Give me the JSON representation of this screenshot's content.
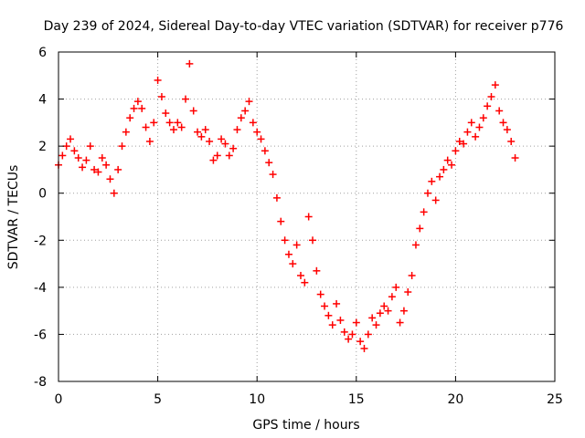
{
  "chart_data": {
    "type": "scatter",
    "title": "Day 239 of 2024, Sidereal Day-to-day VTEC variation (SDTVAR) for receiver p776",
    "xlabel": "GPS time / hours",
    "ylabel": "SDTVAR / TECUs",
    "xlim": [
      0,
      25
    ],
    "ylim": [
      -8,
      6
    ],
    "xticks": [
      0,
      5,
      10,
      15,
      20,
      25
    ],
    "yticks": [
      -8,
      -6,
      -4,
      -2,
      0,
      2,
      4,
      6
    ],
    "grid": true,
    "marker": "+",
    "color": "#ff0000",
    "series": [
      {
        "name": "SDTVAR",
        "x": [
          0.0,
          0.2,
          0.4,
          0.6,
          0.8,
          1.0,
          1.2,
          1.4,
          1.6,
          1.8,
          2.0,
          2.2,
          2.4,
          2.6,
          2.8,
          3.0,
          3.2,
          3.4,
          3.6,
          3.8,
          4.0,
          4.2,
          4.4,
          4.6,
          4.8,
          5.0,
          5.2,
          5.4,
          5.6,
          5.8,
          6.0,
          6.2,
          6.4,
          6.6,
          6.8,
          7.0,
          7.2,
          7.4,
          7.6,
          7.8,
          8.0,
          8.2,
          8.4,
          8.6,
          8.8,
          9.0,
          9.2,
          9.4,
          9.6,
          9.8,
          10.0,
          10.2,
          10.4,
          10.6,
          10.8,
          11.0,
          11.2,
          11.4,
          11.6,
          11.8,
          12.0,
          12.2,
          12.4,
          12.6,
          12.8,
          13.0,
          13.2,
          13.4,
          13.6,
          13.8,
          14.0,
          14.2,
          14.4,
          14.6,
          14.8,
          15.0,
          15.2,
          15.4,
          15.6,
          15.8,
          16.0,
          16.2,
          16.4,
          16.6,
          16.8,
          17.0,
          17.2,
          17.4,
          17.6,
          17.8,
          18.0,
          18.2,
          18.4,
          18.6,
          18.8,
          19.0,
          19.2,
          19.4,
          19.6,
          19.8,
          20.0,
          20.2,
          20.4,
          20.6,
          20.8,
          21.0,
          21.2,
          21.4,
          21.6,
          21.8,
          22.0,
          22.2,
          22.4,
          22.6,
          22.8,
          23.0
        ],
        "y": [
          1.2,
          1.6,
          2.0,
          2.3,
          1.8,
          1.5,
          1.1,
          1.4,
          2.0,
          1.0,
          0.9,
          1.5,
          1.2,
          0.6,
          0.0,
          1.0,
          2.0,
          2.6,
          3.2,
          3.6,
          3.9,
          3.6,
          2.8,
          2.2,
          3.0,
          4.8,
          4.1,
          3.4,
          3.0,
          2.7,
          3.0,
          2.8,
          4.0,
          5.5,
          3.5,
          2.6,
          2.4,
          2.7,
          2.2,
          1.4,
          1.6,
          2.3,
          2.1,
          1.6,
          1.9,
          2.7,
          3.2,
          3.5,
          3.9,
          3.0,
          2.6,
          2.3,
          1.8,
          1.3,
          0.8,
          -0.2,
          -1.2,
          -2.0,
          -2.6,
          -3.0,
          -2.2,
          -3.5,
          -3.8,
          -1.0,
          -2.0,
          -3.3,
          -4.3,
          -4.8,
          -5.2,
          -5.6,
          -4.7,
          -5.4,
          -5.9,
          -6.2,
          -6.0,
          -5.5,
          -6.3,
          -6.6,
          -6.0,
          -5.3,
          -5.6,
          -5.1,
          -4.8,
          -5.0,
          -4.4,
          -4.0,
          -5.5,
          -5.0,
          -4.2,
          -3.5,
          -2.2,
          -1.5,
          -0.8,
          0.0,
          0.5,
          -0.3,
          0.7,
          1.0,
          1.4,
          1.2,
          1.8,
          2.2,
          2.1,
          2.6,
          3.0,
          2.4,
          2.8,
          3.2,
          3.7,
          4.1,
          4.6,
          3.5,
          3.0,
          2.7,
          2.2,
          1.5
        ]
      }
    ]
  }
}
